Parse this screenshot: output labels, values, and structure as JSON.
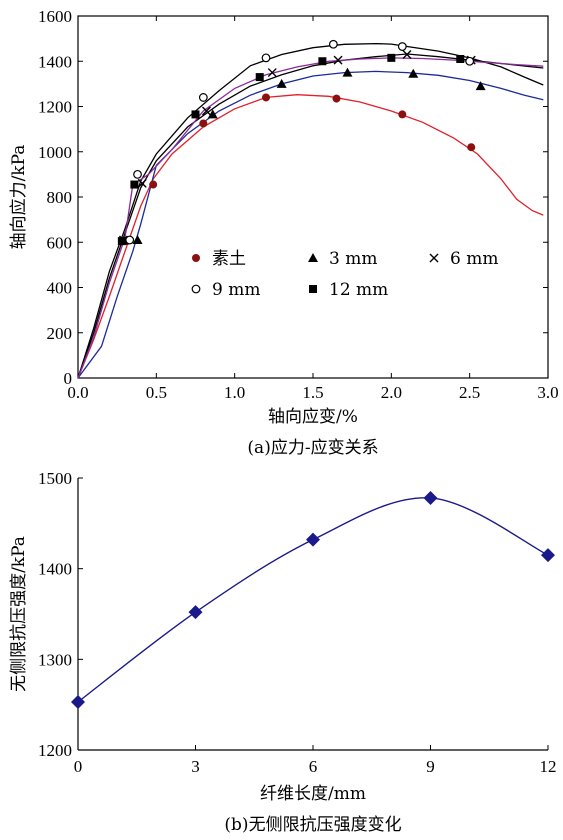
{
  "chart_data": [
    {
      "type": "line",
      "caption": "(a)应力-应变关系",
      "xlabel": "轴向应变/%",
      "ylabel": "轴向应力/kPa",
      "xlim": [
        0,
        3.0
      ],
      "ylim": [
        0,
        1600
      ],
      "xticks": [
        0,
        0.5,
        1.0,
        1.5,
        2.0,
        2.5,
        3.0
      ],
      "xtick_labels": [
        "0.0",
        "0.5",
        "1.0",
        "1.5",
        "2.0",
        "2.5",
        "3.0"
      ],
      "yticks": [
        0,
        200,
        400,
        600,
        800,
        1000,
        1200,
        1400,
        1600
      ],
      "ytick_labels": [
        "0",
        "200",
        "400",
        "600",
        "800",
        "1000",
        "1200",
        "1400",
        "1600"
      ],
      "grid": false,
      "legend_position": "middle",
      "series": [
        {
          "name": "素土",
          "marker": "filled-circle",
          "line_color": "#e0202a",
          "marker_color": "#8b1010",
          "x": [
            0,
            0.1,
            0.2,
            0.3,
            0.4,
            0.48,
            0.6,
            0.8,
            1.0,
            1.2,
            1.4,
            1.6,
            1.8,
            2.0,
            2.2,
            2.4,
            2.55,
            2.7,
            2.8,
            2.9,
            2.97
          ],
          "y": [
            0,
            170,
            360,
            560,
            760,
            880,
            990,
            1110,
            1190,
            1240,
            1252,
            1245,
            1220,
            1180,
            1130,
            1060,
            990,
            880,
            790,
            740,
            720
          ],
          "marker_x": [
            0.31,
            0.48,
            0.8,
            1.2,
            1.65,
            2.07,
            2.51
          ],
          "marker_y": [
            605,
            855,
            1125,
            1240,
            1235,
            1165,
            1020
          ]
        },
        {
          "name": "3 mm",
          "marker": "filled-triangle",
          "line_color": "#1a2a9a",
          "marker_color": "#000000",
          "x": [
            0,
            0.15,
            0.25,
            0.35,
            0.4,
            0.5,
            0.7,
            0.9,
            1.1,
            1.3,
            1.5,
            1.7,
            1.9,
            2.1,
            2.3,
            2.5,
            2.7,
            2.85,
            2.97
          ],
          "y": [
            0,
            140,
            360,
            560,
            680,
            940,
            1080,
            1180,
            1250,
            1300,
            1335,
            1350,
            1355,
            1350,
            1338,
            1315,
            1280,
            1250,
            1230
          ],
          "marker_x": [
            0.38,
            0.86,
            1.3,
            1.72,
            2.14,
            2.57
          ],
          "marker_y": [
            610,
            1165,
            1300,
            1350,
            1345,
            1290
          ]
        },
        {
          "name": "6 mm",
          "marker": "cross",
          "line_color": "#000000",
          "marker_color": "#000000",
          "x": [
            0,
            0.1,
            0.2,
            0.3,
            0.4,
            0.5,
            0.7,
            0.9,
            1.1,
            1.3,
            1.5,
            1.7,
            1.9,
            2.1,
            2.3,
            2.5,
            2.7,
            2.9,
            2.97
          ],
          "y": [
            0,
            200,
            440,
            640,
            840,
            960,
            1110,
            1210,
            1290,
            1340,
            1380,
            1405,
            1420,
            1432,
            1420,
            1405,
            1390,
            1375,
            1370
          ],
          "marker_x": [
            0.29,
            0.41,
            0.82,
            1.24,
            1.66,
            2.1,
            2.51
          ],
          "marker_y": [
            610,
            860,
            1180,
            1350,
            1405,
            1430,
            1405
          ]
        },
        {
          "name": "9 mm",
          "marker": "open-circle",
          "line_color": "#000000",
          "marker_color": "#000000",
          "x": [
            0,
            0.1,
            0.2,
            0.3,
            0.4,
            0.5,
            0.7,
            0.9,
            1.1,
            1.3,
            1.5,
            1.7,
            1.9,
            2.0,
            2.1,
            2.3,
            2.5,
            2.7,
            2.85,
            2.97
          ],
          "y": [
            0,
            220,
            470,
            660,
            870,
            990,
            1150,
            1270,
            1380,
            1430,
            1460,
            1475,
            1478,
            1476,
            1465,
            1445,
            1415,
            1375,
            1330,
            1295
          ],
          "marker_x": [
            0.33,
            0.38,
            0.8,
            1.2,
            1.63,
            2.07,
            2.5
          ],
          "marker_y": [
            610,
            900,
            1240,
            1415,
            1475,
            1465,
            1400
          ]
        },
        {
          "name": "12 mm",
          "marker": "filled-square",
          "line_color": "#8a2a9a",
          "marker_color": "#000000",
          "x": [
            0,
            0.1,
            0.2,
            0.3,
            0.35,
            0.45,
            0.6,
            0.8,
            1.0,
            1.2,
            1.4,
            1.6,
            1.8,
            2.0,
            2.2,
            2.4,
            2.6,
            2.8,
            2.97
          ],
          "y": [
            0,
            180,
            420,
            620,
            855,
            900,
            1010,
            1180,
            1280,
            1340,
            1375,
            1400,
            1410,
            1415,
            1412,
            1405,
            1395,
            1385,
            1378
          ],
          "marker_x": [
            0.28,
            0.36,
            0.75,
            1.16,
            1.56,
            2.0,
            2.44
          ],
          "marker_y": [
            605,
            855,
            1165,
            1330,
            1400,
            1415,
            1410
          ]
        }
      ]
    },
    {
      "type": "line",
      "caption": "(b)无侧限抗压强度变化",
      "xlabel": "纤维长度/mm",
      "ylabel": "无侧限抗压强度/kPa",
      "xlim": [
        0,
        12
      ],
      "ylim": [
        1200,
        1500
      ],
      "xticks": [
        0,
        3,
        6,
        9,
        12
      ],
      "yticks": [
        1200,
        1300,
        1400,
        1500
      ],
      "grid": false,
      "line_color": "#1a1a8a",
      "marker": "filled-diamond",
      "marker_color": "#1a1a8a",
      "x": [
        0,
        3,
        6,
        9,
        12
      ],
      "y": [
        1253,
        1352,
        1432,
        1478,
        1415
      ]
    }
  ]
}
